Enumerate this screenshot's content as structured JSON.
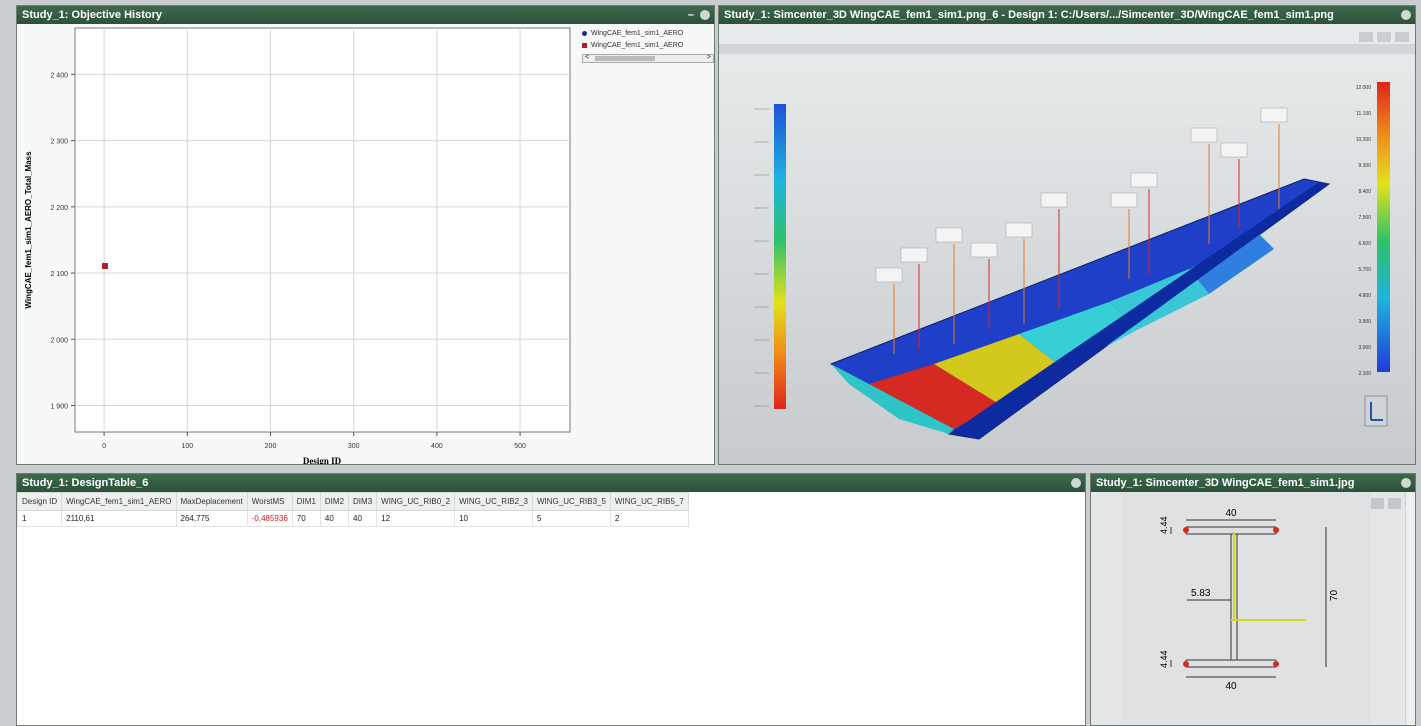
{
  "hist_panel": {
    "title": "Study_1: Objective History",
    "btn_min": "–"
  },
  "chart_data": {
    "type": "scatter",
    "xlabel": "Design ID",
    "ylabel": "WingCAE_fem1_sim1_AERO_Total_Mass",
    "xlim": [
      -35,
      560
    ],
    "ylim": [
      1860,
      2470
    ],
    "x_ticks": [
      "0",
      "100",
      "200",
      "300",
      "400",
      "500"
    ],
    "y_ticks": [
      "1 900",
      "2 000",
      "2 100",
      "2 200",
      "2 300",
      "2 400"
    ],
    "x_tick_values": [
      0,
      100,
      200,
      300,
      400,
      500
    ],
    "y_tick_values": [
      1900,
      2000,
      2100,
      2200,
      2300,
      2400
    ],
    "series": [
      {
        "name": "WingCAE_fem1_sim1_AERO",
        "marker": "circle",
        "color": "#1a2a8a",
        "x": [],
        "y": []
      },
      {
        "name": "WingCAE_fem1_sim1_AERO",
        "marker": "square",
        "color": "#b21d2b",
        "x": [
          1
        ],
        "y": [
          2110.61
        ]
      }
    ],
    "grid": true,
    "legend_position": "right"
  },
  "legend": {
    "item1": "WingCAE_fem1_sim1_AERO",
    "item2": "WingCAE_fem1_sim1_AERO",
    "scroll_left": "<",
    "scroll_right": ">"
  },
  "view_panel": {
    "title": "Study_1: Simcenter_3D WingCAE_fem1_sim1.png_6 - Design 1: C:/Users/.../Simcenter_3D/WingCAE_fem1_sim1.png",
    "colorbar_left_color_top": "#1e52d8",
    "colorbar_left_color_bottom": "#e0231c",
    "colorbar_right_labels": [
      "12.000",
      "11.100",
      "10.200",
      "9.300",
      "8.400",
      "7.500",
      "6.600",
      "5.700",
      "4.800",
      "3.900",
      "3.000",
      "2.100"
    ]
  },
  "table_panel": {
    "title": "Study_1: DesignTable_6",
    "columns": [
      "Design ID",
      "WingCAE_fem1_sim1_AERO",
      "MaxDeplacement",
      "WorstMS",
      "DIM1",
      "DIM2",
      "DIM3",
      "WING_UC_RIB0_2",
      "WING_UC_RIB2_3",
      "WING_UC_RIB3_5",
      "WING_UC_RIB5_7"
    ],
    "rows": [
      [
        "1",
        "2110,61",
        "264,775",
        "-0,485936",
        "70",
        "40",
        "40",
        "12",
        "10",
        "5",
        "2"
      ]
    ]
  },
  "section_panel": {
    "title": "Study_1: Simcenter_3D WingCAE_fem1_sim1.jpg",
    "dim_top": "40",
    "dim_bottom": "40",
    "dim_height": "70",
    "dim_web": "5.83",
    "dim_flange_top": "4.44",
    "dim_flange_bottom": "4.44"
  }
}
